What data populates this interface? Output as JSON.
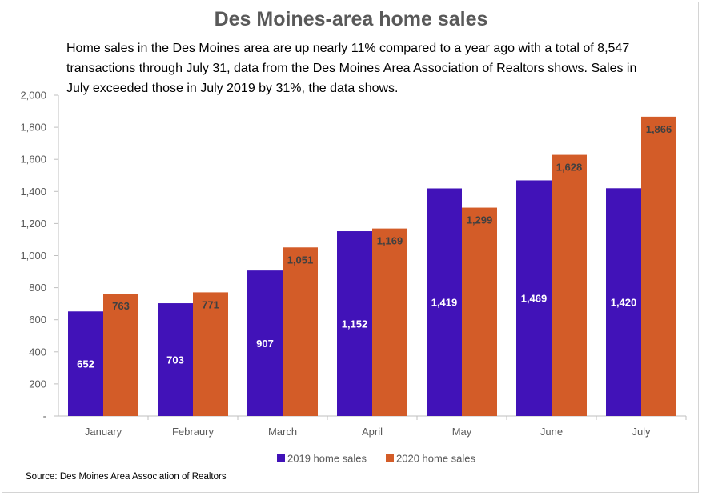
{
  "chart_data": {
    "type": "bar",
    "title": "Des Moines-area home sales",
    "subtitle": "Home sales in the Des Moines area are up nearly 11% compared to a year ago with a total of 8,547 transactions through July 31, data from the Des Moines Area Association of Realtors shows. Sales in July exceeded those in July 2019 by 31%, the data shows.",
    "source": "Source: Des Moines Area Association of Realtors",
    "categories": [
      "January",
      "Febraury",
      "March",
      "April",
      "May",
      "June",
      "July"
    ],
    "series": [
      {
        "name": "2019 home sales",
        "color": "#4112B8",
        "label_color": "#ffffff",
        "label_position": "middle",
        "values": [
          652,
          703,
          907,
          1152,
          1419,
          1469,
          1420
        ]
      },
      {
        "name": "2020 home sales",
        "color": "#D35C28",
        "label_color": "#404040",
        "label_position": "top",
        "values": [
          763,
          771,
          1051,
          1169,
          1299,
          1628,
          1866
        ]
      }
    ],
    "ylim": [
      0,
      2000
    ],
    "yticks": [
      "-",
      "200",
      "400",
      "600",
      "800",
      "1,000",
      "1,200",
      "1,400",
      "1,600",
      "1,800",
      "2,000"
    ],
    "grid": false,
    "legend_position": "bottom"
  }
}
